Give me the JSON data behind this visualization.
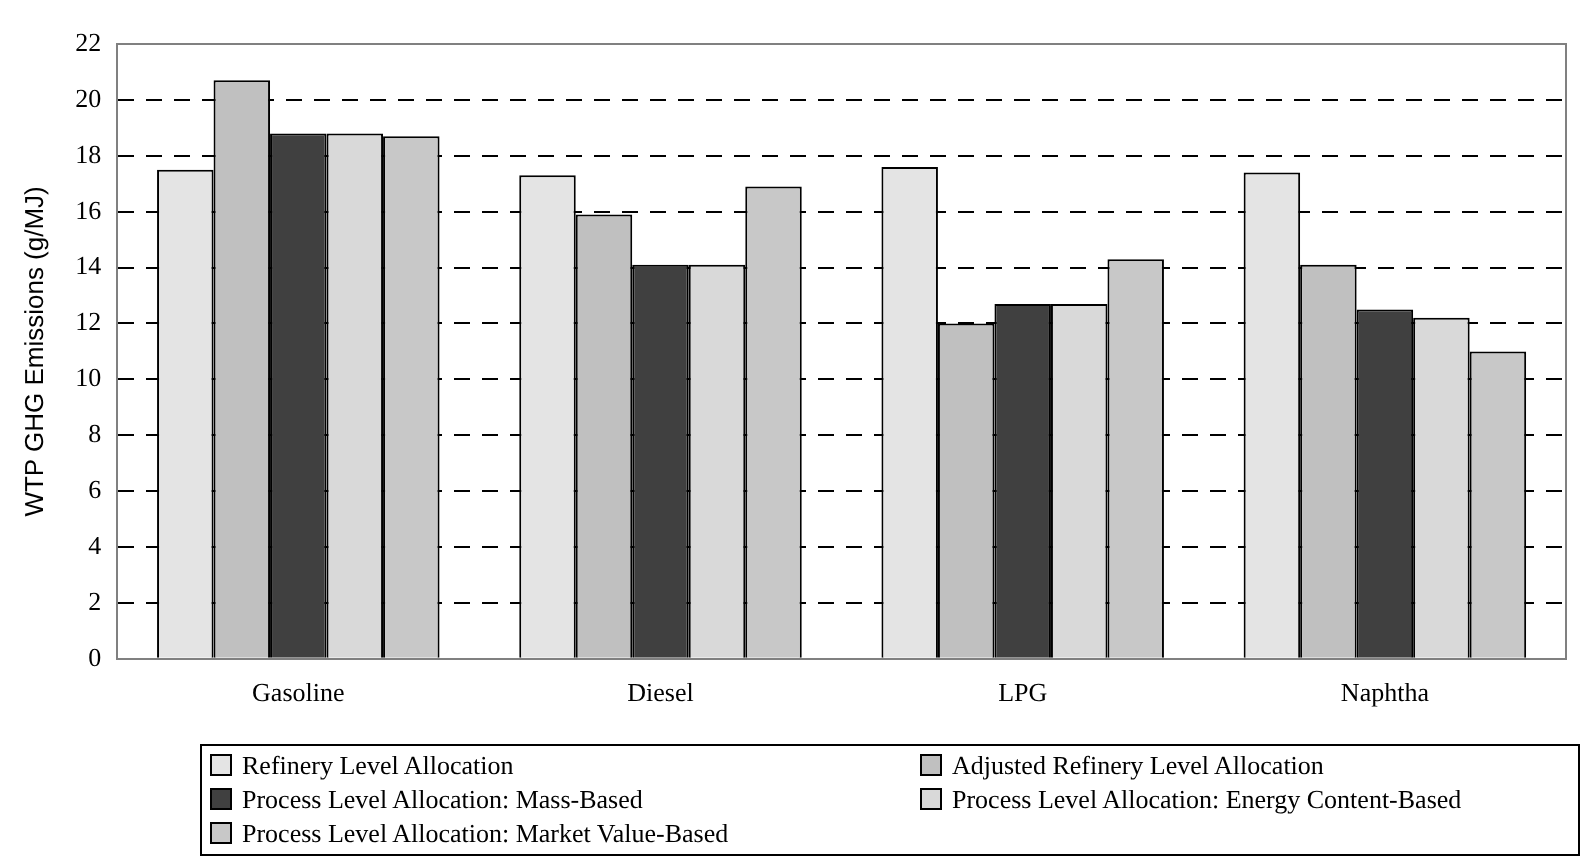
{
  "chart_data": {
    "type": "bar",
    "ylabel": "WTP GHG Emissions (g/MJ)",
    "categories": [
      "Gasoline",
      "Diesel",
      "LPG",
      "Naphtha"
    ],
    "series": [
      {
        "name": "Refinery Level Allocation",
        "color": "#e4e4e4",
        "values": [
          17.5,
          17.3,
          17.6,
          17.4
        ]
      },
      {
        "name": "Adjusted Refinery Level Allocation",
        "color": "#c0c0c0",
        "values": [
          20.7,
          15.9,
          12.0,
          14.1
        ]
      },
      {
        "name": "Process Level Allocation: Mass-Based",
        "color": "#404040",
        "values": [
          18.8,
          14.1,
          12.7,
          12.5
        ]
      },
      {
        "name": "Process Level Allocation: Energy Content-Based",
        "color": "#d9d9d9",
        "values": [
          18.8,
          14.1,
          12.7,
          12.2
        ]
      },
      {
        "name": "Process Level Allocation: Market Value-Based",
        "color": "#c8c8c8",
        "values": [
          18.7,
          16.9,
          14.3,
          11.0
        ]
      }
    ],
    "ylim": [
      0,
      22
    ],
    "yticks": [
      0,
      2,
      4,
      6,
      8,
      10,
      12,
      14,
      16,
      18,
      20,
      22
    ],
    "grid": "y",
    "legend": "bottom"
  }
}
